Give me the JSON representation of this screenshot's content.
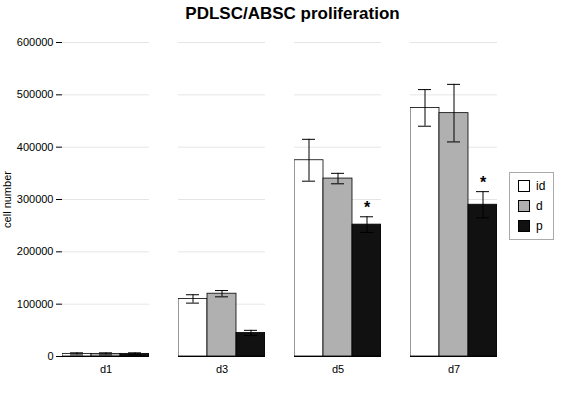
{
  "chart_data": {
    "type": "bar",
    "title": "PDLSC/ABSC proliferation",
    "ylabel": "cell number",
    "categories": [
      "d1",
      "d3",
      "d5",
      "d7"
    ],
    "series": [
      {
        "name": "id",
        "color": "#ffffff",
        "values": [
          5000,
          110000,
          375000,
          475000
        ],
        "errors": [
          2000,
          8000,
          40000,
          35000
        ]
      },
      {
        "name": "d",
        "color": "#b0b0b0",
        "values": [
          5000,
          120000,
          340000,
          465000
        ],
        "errors": [
          2000,
          6000,
          10000,
          55000
        ]
      },
      {
        "name": "p",
        "color": "#111111",
        "values": [
          5000,
          45000,
          252000,
          290000
        ],
        "errors": [
          2000,
          5000,
          15000,
          25000
        ]
      }
    ],
    "annotations": [
      {
        "text": "*",
        "category": "d5",
        "series": "p"
      },
      {
        "text": "*",
        "category": "d7",
        "series": "p"
      }
    ],
    "ylim": [
      0,
      600000
    ],
    "yticks": [
      0,
      100000,
      200000,
      300000,
      400000,
      500000,
      600000
    ],
    "grid": true,
    "legend": "right"
  }
}
